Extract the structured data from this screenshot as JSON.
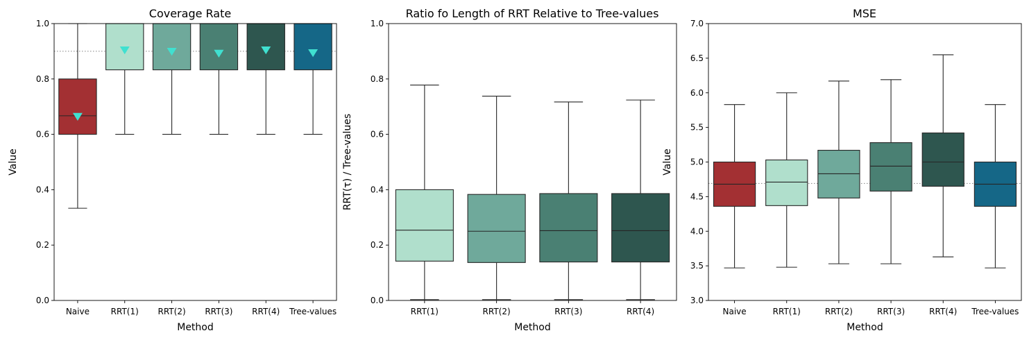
{
  "chart_data": [
    {
      "type": "box",
      "title": "Coverage Rate",
      "xlabel": "Method",
      "ylabel": "Value",
      "ylim": [
        0.0,
        1.0
      ],
      "yticks": [
        0.0,
        0.2,
        0.4,
        0.6,
        0.8,
        1.0
      ],
      "ytick_labels": [
        "0.0",
        "0.2",
        "0.4",
        "0.6",
        "0.8",
        "1.0"
      ],
      "reference_line": 0.9,
      "categories": [
        "Naive",
        "RRT(1)",
        "RRT(2)",
        "RRT(3)",
        "RRT(4)",
        "Tree-values"
      ],
      "colors": [
        "#a33033",
        "#b0dfcc",
        "#6fa99b",
        "#4a8073",
        "#2e564f",
        "#156787"
      ],
      "mean_marker_color": "#40e0d0",
      "boxes": [
        {
          "whislo": 0.333,
          "q1": 0.6,
          "med": 0.667,
          "q3": 0.8,
          "whishi": 1.0,
          "mean": 0.665
        },
        {
          "whislo": 0.6,
          "q1": 0.833,
          "med": 1.0,
          "q3": 1.0,
          "whishi": 1.0,
          "mean": 0.905
        },
        {
          "whislo": 0.6,
          "q1": 0.833,
          "med": 1.0,
          "q3": 1.0,
          "whishi": 1.0,
          "mean": 0.9
        },
        {
          "whislo": 0.6,
          "q1": 0.833,
          "med": 1.0,
          "q3": 1.0,
          "whishi": 1.0,
          "mean": 0.893
        },
        {
          "whislo": 0.6,
          "q1": 0.833,
          "med": 1.0,
          "q3": 1.0,
          "whishi": 1.0,
          "mean": 0.905
        },
        {
          "whislo": 0.6,
          "q1": 0.833,
          "med": 1.0,
          "q3": 1.0,
          "whishi": 1.0,
          "mean": 0.895
        }
      ]
    },
    {
      "type": "box",
      "title": "Ratio fo Length of RRT Relative to Tree-values",
      "xlabel": "Method",
      "ylabel": "RRT(τ) / Tree-values",
      "ylim": [
        0.0,
        1.0
      ],
      "yticks": [
        0.0,
        0.2,
        0.4,
        0.6,
        0.8,
        1.0
      ],
      "ytick_labels": [
        "0.0",
        "0.2",
        "0.4",
        "0.6",
        "0.8",
        "1.0"
      ],
      "reference_line": null,
      "categories": [
        "RRT(1)",
        "RRT(2)",
        "RRT(3)",
        "RRT(4)"
      ],
      "colors": [
        "#b0dfcc",
        "#6fa99b",
        "#4a8073",
        "#2e564f"
      ],
      "mean_marker_color": null,
      "boxes": [
        {
          "whislo": 0.003,
          "q1": 0.142,
          "med": 0.254,
          "q3": 0.4,
          "whishi": 0.778
        },
        {
          "whislo": 0.003,
          "q1": 0.137,
          "med": 0.25,
          "q3": 0.383,
          "whishi": 0.738
        },
        {
          "whislo": 0.003,
          "q1": 0.139,
          "med": 0.252,
          "q3": 0.386,
          "whishi": 0.717
        },
        {
          "whislo": 0.003,
          "q1": 0.139,
          "med": 0.252,
          "q3": 0.386,
          "whishi": 0.724
        }
      ]
    },
    {
      "type": "box",
      "title": "MSE",
      "xlabel": "Method",
      "ylabel": "Value",
      "ylim": [
        3.0,
        7.0
      ],
      "yticks": [
        3.0,
        3.5,
        4.0,
        4.5,
        5.0,
        5.5,
        6.0,
        6.5,
        7.0
      ],
      "ytick_labels": [
        "3.0",
        "3.5",
        "4.0",
        "4.5",
        "5.0",
        "5.5",
        "6.0",
        "6.5",
        "7.0"
      ],
      "reference_line": 4.69,
      "categories": [
        "Naive",
        "RRT(1)",
        "RRT(2)",
        "RRT(3)",
        "RRT(4)",
        "Tree-values"
      ],
      "colors": [
        "#a33033",
        "#b0dfcc",
        "#6fa99b",
        "#4a8073",
        "#2e564f",
        "#156787"
      ],
      "mean_marker_color": null,
      "boxes": [
        {
          "whislo": 3.47,
          "q1": 4.36,
          "med": 4.68,
          "q3": 5.0,
          "whishi": 5.83
        },
        {
          "whislo": 3.48,
          "q1": 4.37,
          "med": 4.71,
          "q3": 5.03,
          "whishi": 6.0
        },
        {
          "whislo": 3.53,
          "q1": 4.48,
          "med": 4.83,
          "q3": 5.17,
          "whishi": 6.17
        },
        {
          "whislo": 3.53,
          "q1": 4.58,
          "med": 4.94,
          "q3": 5.28,
          "whishi": 6.19
        },
        {
          "whislo": 3.63,
          "q1": 4.65,
          "med": 5.0,
          "q3": 5.42,
          "whishi": 6.55
        },
        {
          "whislo": 3.47,
          "q1": 4.36,
          "med": 4.68,
          "q3": 5.0,
          "whishi": 5.83
        }
      ]
    }
  ]
}
